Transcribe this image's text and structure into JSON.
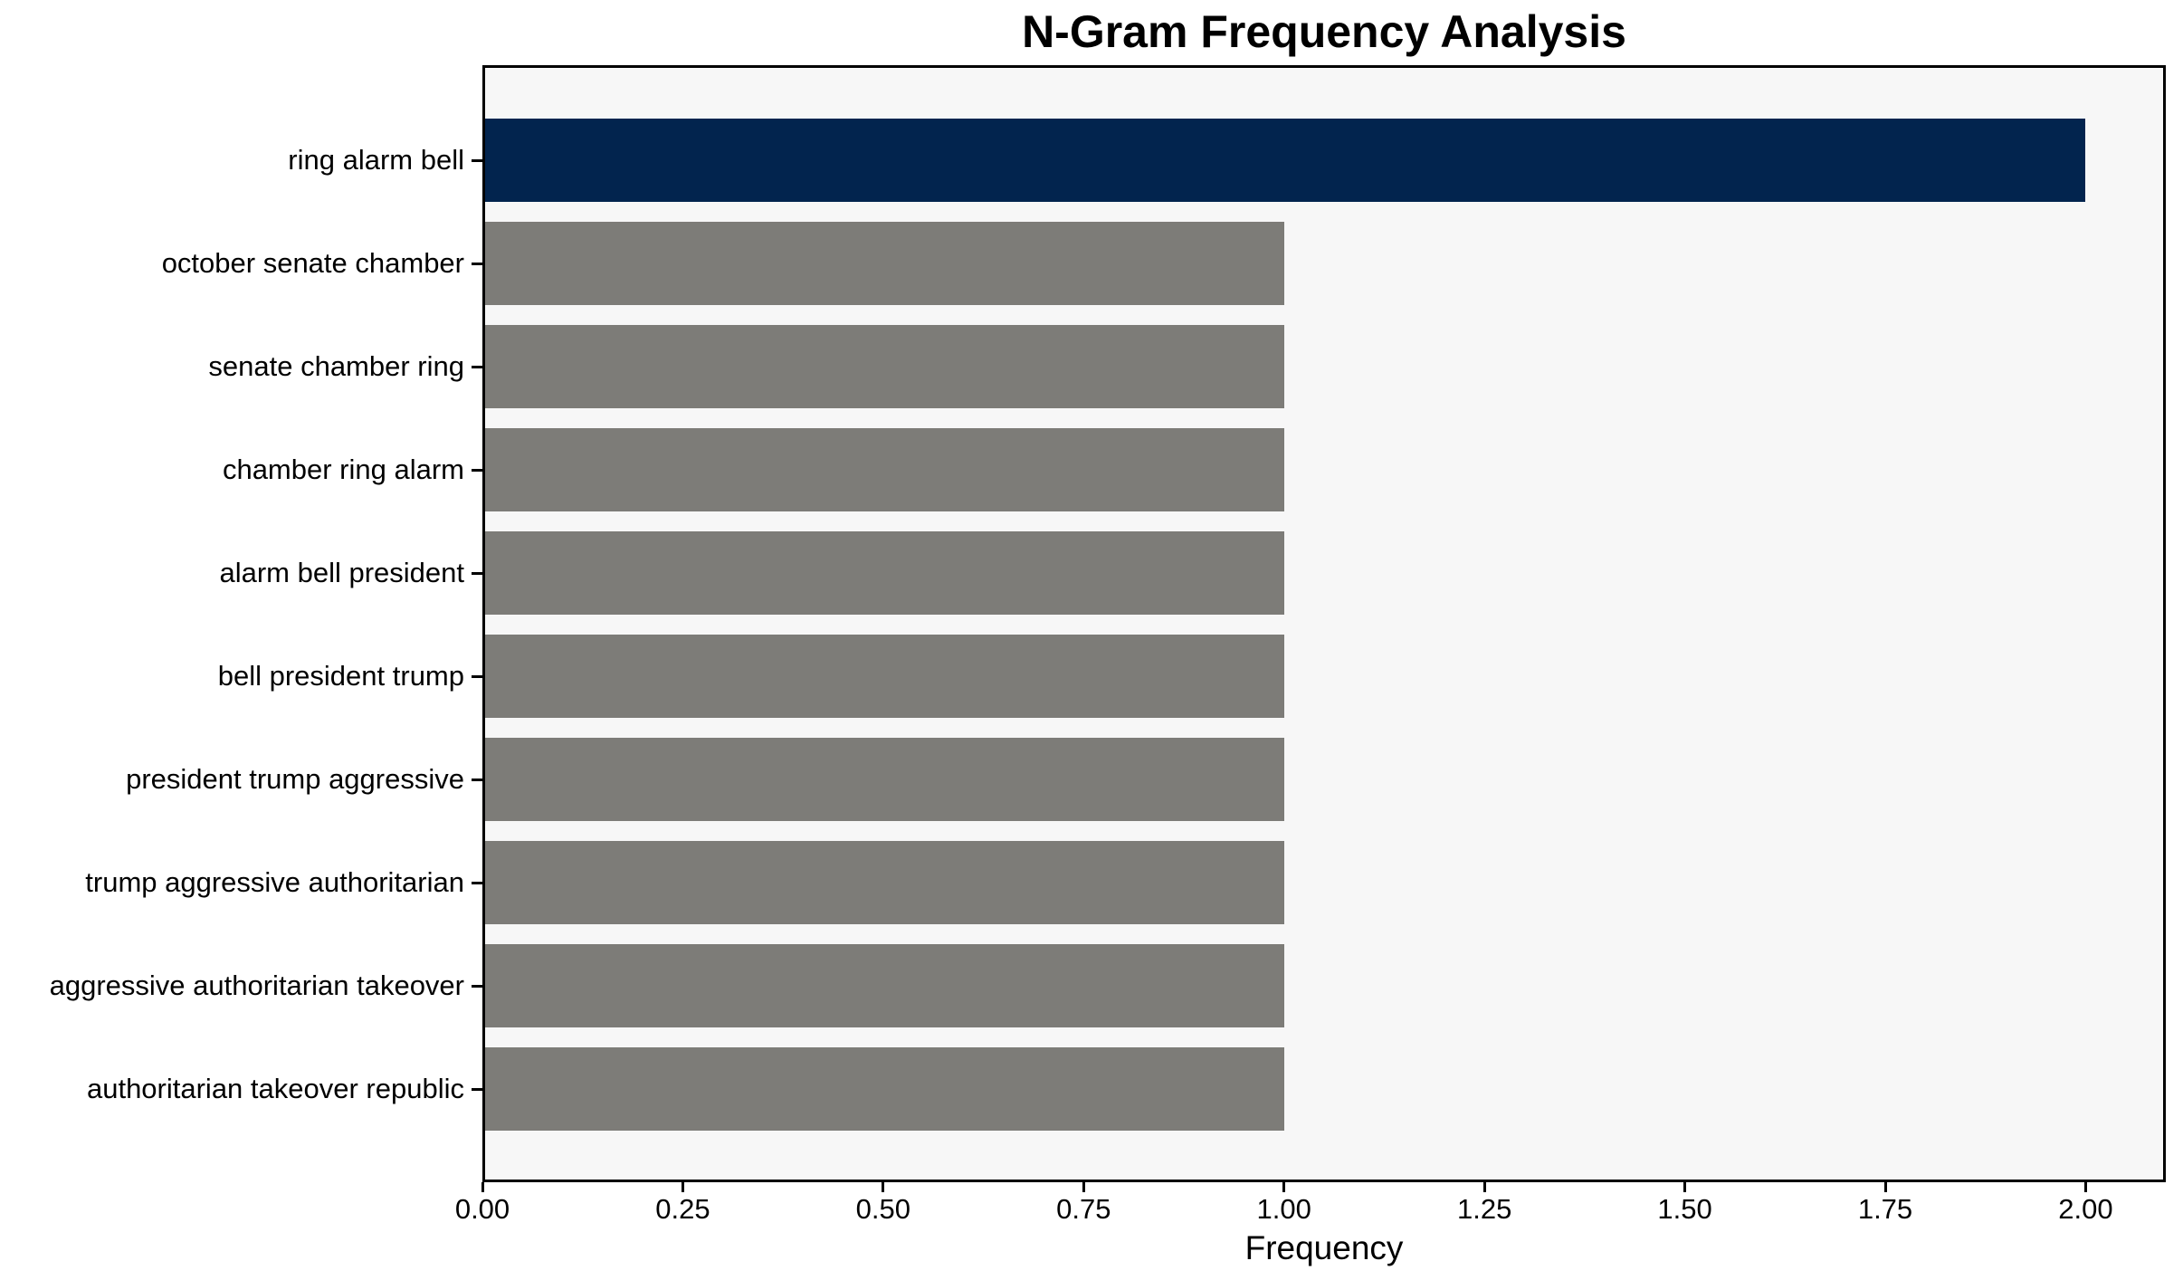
{
  "chart_data": {
    "type": "bar",
    "orientation": "horizontal",
    "title": "N-Gram Frequency Analysis",
    "xlabel": "Frequency",
    "ylabel": "",
    "categories": [
      "ring alarm bell",
      "october senate chamber",
      "senate chamber ring",
      "chamber ring alarm",
      "alarm bell president",
      "bell president trump",
      "president trump aggressive",
      "trump aggressive authoritarian",
      "aggressive authoritarian takeover",
      "authoritarian takeover republic"
    ],
    "values": [
      2,
      1,
      1,
      1,
      1,
      1,
      1,
      1,
      1,
      1
    ],
    "bar_colors": [
      "#02244E",
      "#7D7C78",
      "#7D7C78",
      "#7D7C78",
      "#7D7C78",
      "#7D7C78",
      "#7D7C78",
      "#7D7C78",
      "#7D7C78",
      "#7D7C78"
    ],
    "xlim": [
      0,
      2.1
    ],
    "xticks": [
      0,
      0.25,
      0.5,
      0.75,
      1.0,
      1.25,
      1.5,
      1.75,
      2.0
    ],
    "xtick_labels": [
      "0.00",
      "0.25",
      "0.50",
      "0.75",
      "1.00",
      "1.25",
      "1.50",
      "1.75",
      "2.00"
    ],
    "grid": false,
    "legend_position": "none",
    "colors": {
      "highlight_bar": "#02244E",
      "default_bar": "#7D7C78",
      "plot_background": "#F7F7F7",
      "figure_background": "#FFFFFF",
      "axis": "#000000",
      "text": "#000000"
    }
  }
}
